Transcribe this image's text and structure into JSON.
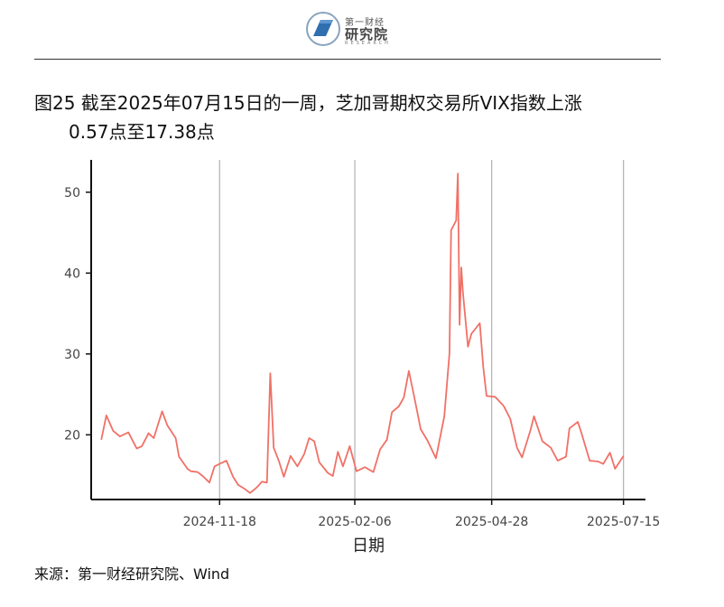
{
  "header": {
    "logo_top": "第一财经",
    "logo_main": "研究院",
    "logo_sub": "RESEARCH"
  },
  "title": {
    "line1": "图25  截至2025年07月15日的一周，芝加哥期权交易所VIX指数上涨",
    "line2": "0.57点至17.38点"
  },
  "source": "来源：第一财经研究院、Wind",
  "colors": {
    "line": "#f07167",
    "axis": "#111111",
    "grid": "#b0b0b0"
  },
  "chart_data": {
    "type": "line",
    "title": "",
    "xlabel": "日期",
    "ylabel": "",
    "x_ticks": [
      "2024-11-18",
      "2025-02-06",
      "2025-04-28",
      "2025-07-15"
    ],
    "y_ticks": [
      20,
      30,
      40,
      50
    ],
    "xlim": [
      "2024-09-03",
      "2025-07-28"
    ],
    "ylim": [
      12,
      54
    ],
    "grid": "vertical",
    "series": [
      {
        "dates": [
          "2024-09-09",
          "2024-09-12",
          "2024-09-16",
          "2024-09-20",
          "2024-09-25",
          "2024-09-30",
          "2024-10-03",
          "2024-10-07",
          "2024-10-10",
          "2024-10-15",
          "2024-10-18",
          "2024-10-23",
          "2024-10-25",
          "2024-10-30",
          "2024-11-01",
          "2024-11-05",
          "2024-11-08",
          "2024-11-12",
          "2024-11-15",
          "2024-11-19",
          "2024-11-22",
          "2024-11-26",
          "2024-11-29",
          "2024-12-03",
          "2024-12-06",
          "2024-12-10",
          "2024-12-13",
          "2024-12-16",
          "2024-12-18",
          "2024-12-20",
          "2024-12-23",
          "2024-12-26",
          "2024-12-30",
          "2025-01-03",
          "2025-01-07",
          "2025-01-10",
          "2025-01-13",
          "2025-01-16",
          "2025-01-21",
          "2025-01-24",
          "2025-01-27",
          "2025-01-30",
          "2025-02-03",
          "2025-02-07",
          "2025-02-12",
          "2025-02-17",
          "2025-02-21",
          "2025-02-25",
          "2025-02-28",
          "2025-03-04",
          "2025-03-07",
          "2025-03-10",
          "2025-03-13",
          "2025-03-17",
          "2025-03-21",
          "2025-03-26",
          "2025-03-31",
          "2025-04-03",
          "2025-04-04",
          "2025-04-07",
          "2025-04-08",
          "2025-04-09",
          "2025-04-10",
          "2025-04-11",
          "2025-04-14",
          "2025-04-16",
          "2025-04-21",
          "2025-04-23",
          "2025-04-25",
          "2025-04-30",
          "2025-05-05",
          "2025-05-09",
          "2025-05-13",
          "2025-05-16",
          "2025-05-21",
          "2025-05-23",
          "2025-05-28",
          "2025-06-02",
          "2025-06-06",
          "2025-06-11",
          "2025-06-13",
          "2025-06-18",
          "2025-06-20",
          "2025-06-25",
          "2025-06-30",
          "2025-07-03",
          "2025-07-07",
          "2025-07-10",
          "2025-07-15"
        ],
        "values": [
          19.4,
          22.4,
          20.5,
          19.8,
          20.3,
          18.3,
          18.6,
          20.2,
          19.6,
          22.9,
          21.2,
          19.6,
          17.3,
          15.8,
          15.5,
          15.4,
          14.9,
          14.1,
          16.1,
          16.5,
          16.8,
          14.8,
          13.8,
          13.3,
          12.8,
          13.5,
          14.2,
          14.1,
          27.6,
          18.4,
          16.8,
          14.8,
          17.4,
          16.1,
          17.6,
          19.6,
          19.2,
          16.6,
          15.3,
          14.9,
          17.9,
          16.1,
          18.6,
          15.5,
          16.0,
          15.4,
          18.2,
          19.4,
          22.8,
          23.5,
          24.6,
          27.9,
          24.9,
          20.7,
          19.3,
          17.1,
          22.3,
          30.1,
          45.3,
          46.5,
          52.3,
          33.6,
          40.7,
          37.6,
          30.9,
          32.5,
          33.8,
          28.4,
          24.8,
          24.7,
          23.6,
          22.0,
          18.4,
          17.2,
          20.6,
          22.3,
          19.2,
          18.4,
          16.8,
          17.3,
          20.8,
          21.6,
          20.3,
          16.8,
          16.7,
          16.4,
          17.8,
          15.8,
          17.4
        ]
      }
    ]
  }
}
